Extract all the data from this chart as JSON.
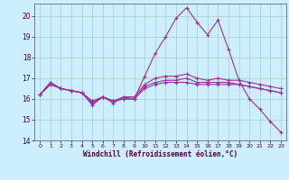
{
  "xlabel": "Windchill (Refroidissement éolien,°C)",
  "background_color": "#cceeff",
  "grid_color": "#aaccbb",
  "line_color": "#993399",
  "xlim": [
    -0.5,
    23.5
  ],
  "ylim": [
    14.0,
    20.6
  ],
  "yticks": [
    14,
    15,
    16,
    17,
    18,
    19,
    20
  ],
  "xticks": [
    0,
    1,
    2,
    3,
    4,
    5,
    6,
    7,
    8,
    9,
    10,
    11,
    12,
    13,
    14,
    15,
    16,
    17,
    18,
    19,
    20,
    21,
    22,
    23
  ],
  "series": [
    [
      16.2,
      16.8,
      16.5,
      16.4,
      16.3,
      15.7,
      16.1,
      15.8,
      16.1,
      16.0,
      17.1,
      18.2,
      19.0,
      19.9,
      20.4,
      19.7,
      19.1,
      19.8,
      18.4,
      16.9,
      16.0,
      15.5,
      14.9,
      14.4
    ],
    [
      16.2,
      16.8,
      16.5,
      16.4,
      16.3,
      15.9,
      16.1,
      15.9,
      16.1,
      16.1,
      16.7,
      17.0,
      17.1,
      17.1,
      17.2,
      17.0,
      16.9,
      17.0,
      16.9,
      16.9,
      16.8,
      16.7,
      16.6,
      16.5
    ],
    [
      16.2,
      16.7,
      16.5,
      16.4,
      16.3,
      15.8,
      16.1,
      15.9,
      16.0,
      16.0,
      16.6,
      16.8,
      16.9,
      16.9,
      17.0,
      16.8,
      16.8,
      16.8,
      16.8,
      16.7,
      16.6,
      16.5,
      16.4,
      16.3
    ],
    [
      16.2,
      16.7,
      16.5,
      16.4,
      16.3,
      15.8,
      16.1,
      15.9,
      16.0,
      16.0,
      16.5,
      16.7,
      16.8,
      16.8,
      16.8,
      16.7,
      16.7,
      16.7,
      16.7,
      16.7,
      16.6,
      16.5,
      16.4,
      16.3
    ]
  ]
}
